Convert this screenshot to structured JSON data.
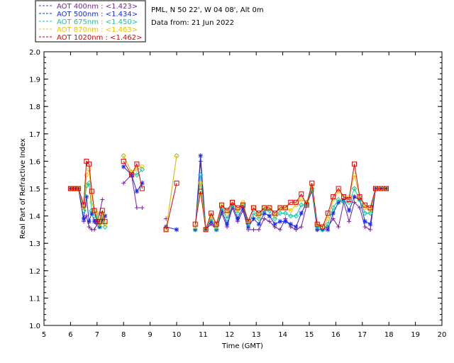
{
  "info": {
    "location": "PML, N 50 22', W 04 08', Alt 0m",
    "date_line": "Data from: 21 Jun 2022"
  },
  "chart_data": {
    "type": "line",
    "xlabel": "Time (GMT)",
    "ylabel": "Real Part of Refractive Index",
    "xlim": [
      5,
      20
    ],
    "ylim": [
      1.0,
      2.0
    ],
    "xticks": [
      5,
      6,
      7,
      8,
      9,
      10,
      11,
      12,
      13,
      14,
      15,
      16,
      17,
      18,
      19,
      20
    ],
    "yticks": [
      1.0,
      1.1,
      1.2,
      1.3,
      1.4,
      1.5,
      1.6,
      1.7,
      1.8,
      1.9,
      2.0
    ],
    "grid": false,
    "legend_position": "top-left, outside plot",
    "x": [
      6.0,
      6.1,
      6.2,
      6.3,
      6.5,
      6.6,
      6.7,
      6.8,
      6.9,
      7.0,
      7.1,
      7.2,
      7.3,
      8.0,
      8.3,
      8.5,
      8.7,
      9.6,
      10.0,
      10.7,
      10.9,
      11.1,
      11.3,
      11.5,
      11.7,
      11.9,
      12.1,
      12.3,
      12.5,
      12.7,
      12.9,
      13.1,
      13.3,
      13.5,
      13.7,
      13.9,
      14.1,
      14.3,
      14.5,
      14.7,
      14.9,
      15.1,
      15.3,
      15.5,
      15.7,
      15.9,
      16.1,
      16.3,
      16.5,
      16.7,
      16.9,
      17.1,
      17.3,
      17.5,
      17.7,
      17.9
    ],
    "series": [
      {
        "name": "AOT  400nm : <1.423>",
        "color": "#7b1fa2",
        "marker": "+",
        "values": [
          1.5,
          1.5,
          1.5,
          1.5,
          1.38,
          1.4,
          1.36,
          1.35,
          1.35,
          1.37,
          1.41,
          1.46,
          null,
          1.52,
          1.55,
          1.43,
          1.43,
          1.39,
          null,
          1.35,
          1.6,
          1.35,
          1.37,
          1.35,
          1.41,
          1.36,
          1.43,
          1.38,
          1.42,
          1.35,
          1.35,
          1.35,
          1.39,
          1.38,
          1.36,
          1.35,
          1.39,
          1.36,
          1.35,
          1.36,
          1.44,
          1.49,
          1.35,
          1.35,
          1.36,
          1.39,
          1.36,
          1.45,
          1.38,
          1.45,
          1.43,
          1.36,
          1.35,
          1.5,
          1.5,
          1.5
        ]
      },
      {
        "name": "AOT  500nm : <1.434>",
        "color": "#1a2be8",
        "marker": "*",
        "values": [
          1.5,
          1.5,
          1.5,
          1.5,
          1.39,
          1.47,
          1.38,
          1.41,
          1.38,
          1.38,
          1.36,
          1.39,
          1.4,
          1.58,
          1.55,
          1.49,
          1.52,
          1.36,
          1.35,
          1.35,
          1.62,
          1.35,
          1.38,
          1.35,
          1.42,
          1.37,
          1.44,
          1.39,
          1.43,
          1.36,
          1.39,
          1.37,
          1.41,
          1.4,
          1.37,
          1.38,
          1.38,
          1.37,
          1.36,
          1.41,
          1.45,
          1.5,
          1.35,
          1.35,
          1.35,
          1.41,
          1.45,
          1.46,
          1.42,
          1.47,
          1.46,
          1.38,
          1.37,
          1.5,
          1.5,
          1.5
        ]
      },
      {
        "name": "AOT  675nm : <1.450>",
        "color": "#10c8a0",
        "marker": "diamond",
        "values": [
          1.5,
          1.5,
          1.5,
          1.5,
          1.42,
          1.51,
          1.52,
          1.42,
          1.4,
          1.4,
          1.36,
          1.4,
          1.36,
          1.62,
          1.56,
          1.55,
          1.57,
          1.35,
          1.62,
          1.35,
          1.55,
          1.35,
          1.39,
          1.35,
          1.43,
          1.39,
          1.44,
          1.41,
          1.44,
          1.37,
          1.41,
          1.39,
          1.42,
          1.42,
          1.39,
          1.41,
          1.41,
          1.4,
          1.4,
          1.44,
          1.44,
          1.5,
          1.36,
          1.35,
          1.37,
          1.43,
          1.46,
          1.45,
          1.45,
          1.5,
          1.46,
          1.41,
          1.41,
          1.5,
          1.5,
          1.5
        ]
      },
      {
        "name": "AOT  870nm : <1.463>",
        "color": "#f0c000",
        "marker": "circle",
        "values": [
          1.5,
          1.5,
          1.5,
          1.5,
          1.43,
          1.55,
          1.57,
          1.45,
          1.42,
          1.41,
          1.37,
          1.41,
          1.37,
          1.62,
          1.56,
          1.57,
          1.58,
          1.35,
          1.62,
          1.36,
          1.52,
          1.35,
          1.4,
          1.36,
          1.44,
          1.41,
          1.45,
          1.42,
          1.45,
          1.38,
          1.43,
          1.4,
          1.43,
          1.43,
          1.4,
          1.43,
          1.43,
          1.42,
          1.44,
          1.46,
          1.45,
          1.51,
          1.37,
          1.36,
          1.39,
          1.46,
          1.49,
          1.47,
          1.47,
          1.55,
          1.47,
          1.43,
          1.42,
          1.5,
          1.5,
          1.5
        ]
      },
      {
        "name": "AOT 1020nm : <1.462>",
        "color": "#e00000",
        "marker": "square",
        "values": [
          1.5,
          1.5,
          1.5,
          1.5,
          1.44,
          1.6,
          1.59,
          1.49,
          1.42,
          1.38,
          1.38,
          1.42,
          1.38,
          1.6,
          1.55,
          1.59,
          1.5,
          1.35,
          1.52,
          1.37,
          1.49,
          1.35,
          1.41,
          1.37,
          1.44,
          1.42,
          1.45,
          1.43,
          1.44,
          1.38,
          1.43,
          1.41,
          1.43,
          1.43,
          1.41,
          1.43,
          1.43,
          1.45,
          1.45,
          1.48,
          1.44,
          1.52,
          1.37,
          1.36,
          1.41,
          1.47,
          1.5,
          1.47,
          1.46,
          1.59,
          1.47,
          1.44,
          1.43,
          1.5,
          1.5,
          1.5
        ]
      }
    ]
  }
}
